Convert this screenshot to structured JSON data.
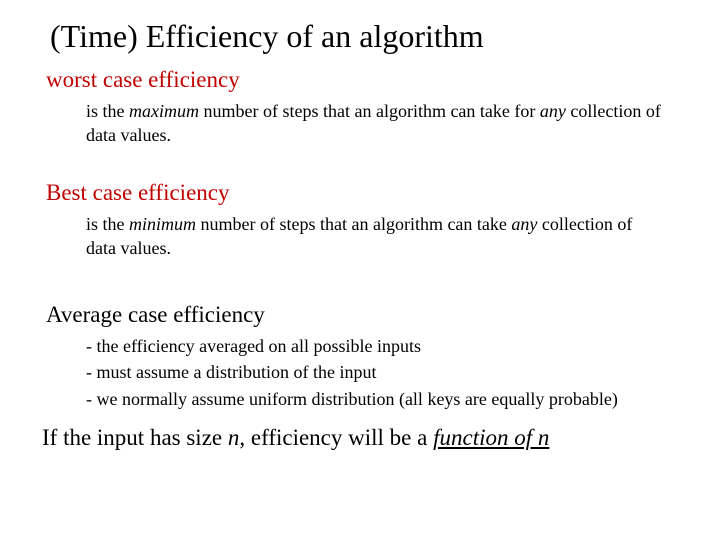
{
  "colors": {
    "heading_red": "#c00000",
    "text_black": "#000000",
    "background": "#ffffff"
  },
  "typography": {
    "family": "Times New Roman",
    "title_size_pt": 32,
    "heading_size_pt": 23,
    "body_size_pt": 18,
    "closing_size_pt": 23
  },
  "title": "(Time) Efficiency of an algorithm",
  "sections": [
    {
      "heading": "worst case efficiency",
      "heading_color": "#c00000",
      "body": {
        "pre1": "is the ",
        "em1": "maximum",
        "mid1": " number of steps that an algorithm can take for ",
        "em2": "any",
        "post1": " collection of data values."
      }
    },
    {
      "heading": "Best case efficiency",
      "heading_color": "#c00000",
      "body": {
        "pre1": "is the ",
        "em1": "minimum",
        "mid1": " number of steps that an algorithm can take ",
        "em2": "any",
        "post1": " collection of data values."
      }
    },
    {
      "heading": "Average case efficiency",
      "heading_color": "#000000",
      "lines": {
        "l1": "- the  efficiency averaged on all possible inputs",
        "l2": "- must assume a distribution of the input",
        "l3": "- we normally assume uniform distribution (all keys are equally probable)"
      }
    }
  ],
  "closing": {
    "pre": "If the input has size ",
    "n1": "n",
    "mid": ", efficiency will be a ",
    "fn": "function of n"
  }
}
